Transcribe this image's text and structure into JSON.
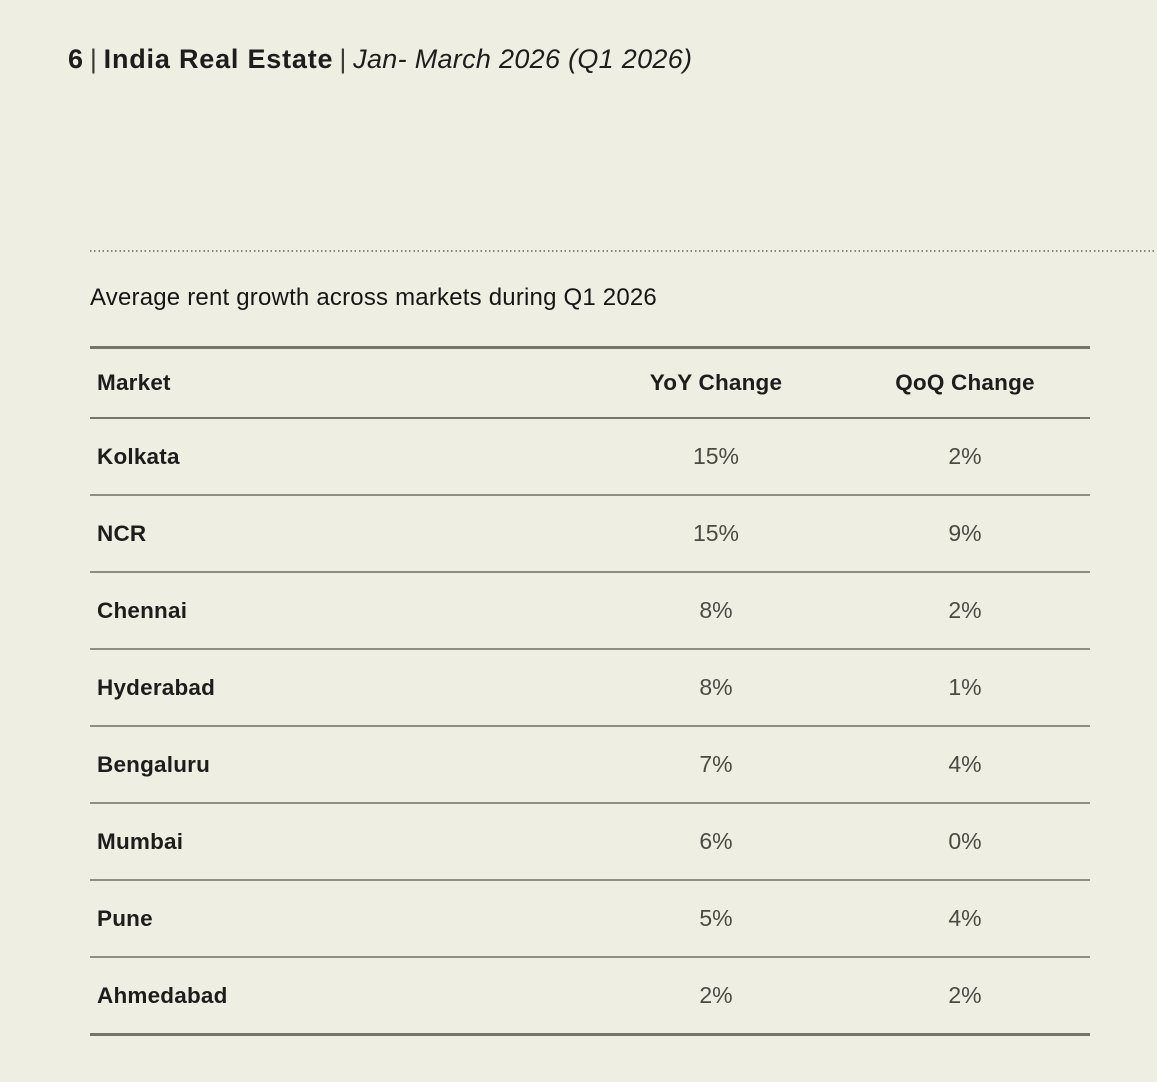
{
  "header": {
    "page_number": "6",
    "divider1": "|",
    "report_title": "India Real Estate",
    "divider2": "|",
    "period": "Jan- March 2026 (Q1 2026)"
  },
  "section": {
    "title": "Average rent growth across markets during Q1 2026"
  },
  "chart_data": {
    "type": "table",
    "title": "Average rent growth across markets during Q1 2026",
    "columns": [
      "Market",
      "YoY Change",
      "QoQ Change"
    ],
    "rows": [
      {
        "market": "Kolkata",
        "yoy": "15%",
        "qoq": "2%"
      },
      {
        "market": "NCR",
        "yoy": "15%",
        "qoq": "9%"
      },
      {
        "market": "Chennai",
        "yoy": "8%",
        "qoq": "2%"
      },
      {
        "market": "Hyderabad",
        "yoy": "8%",
        "qoq": "1%"
      },
      {
        "market": "Bengaluru",
        "yoy": "7%",
        "qoq": "4%"
      },
      {
        "market": "Mumbai",
        "yoy": "6%",
        "qoq": "0%"
      },
      {
        "market": "Pune",
        "yoy": "5%",
        "qoq": "4%"
      },
      {
        "market": "Ahmedabad",
        "yoy": "2%",
        "qoq": "2%"
      }
    ]
  },
  "colors": {
    "background": "#efeee3",
    "text_primary": "#1d1d1b",
    "text_secondary": "#4b4b44",
    "rule_dark": "#75756b",
    "rule_light": "#8e8e83"
  }
}
